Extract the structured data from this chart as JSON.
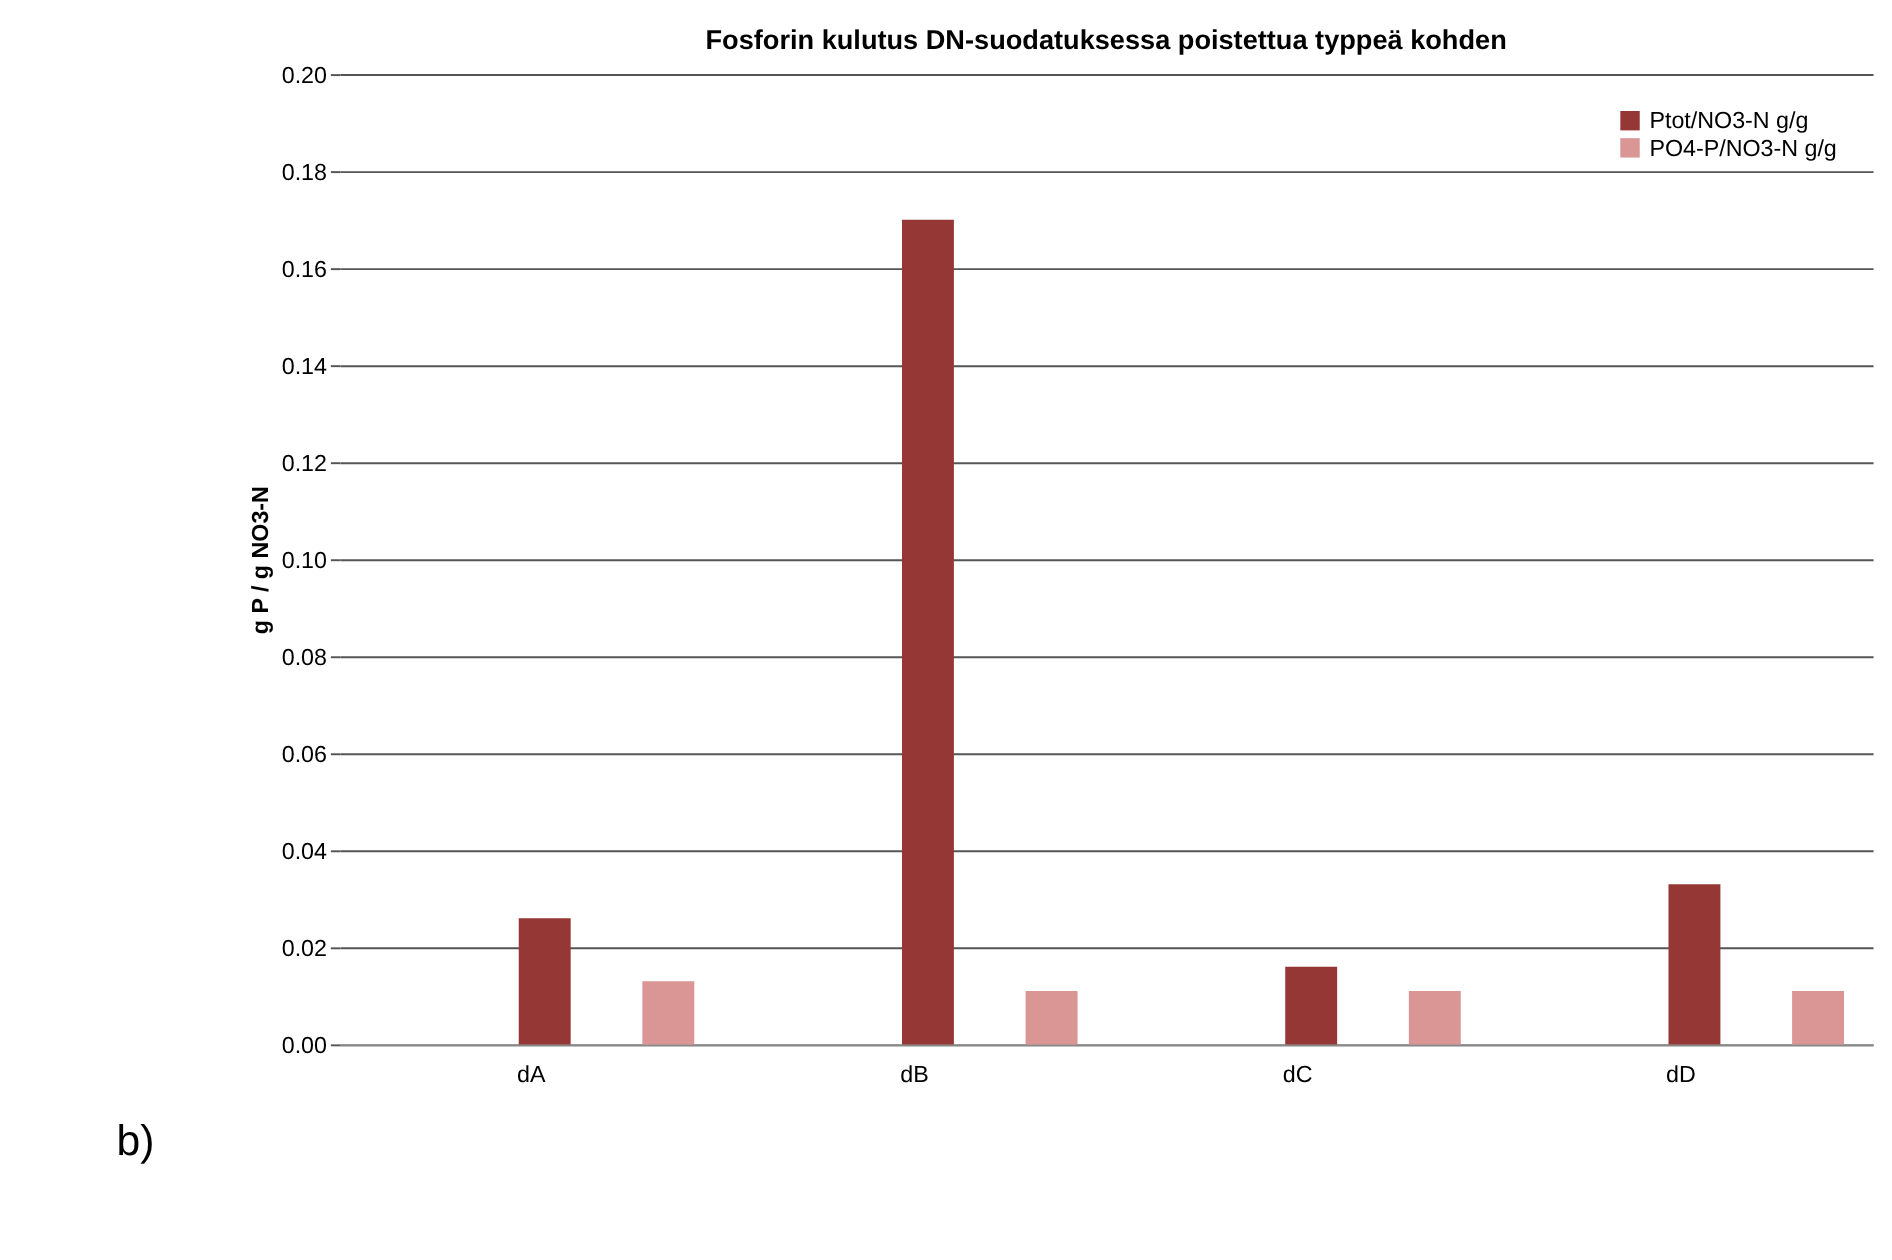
{
  "chart_data": {
    "type": "bar",
    "title": "Fosforin kulutus DN-suodatuksessa poistettua typpeä kohden",
    "ylabel": "g P / g NO3-N",
    "categories": [
      "dA",
      "dB",
      "dC",
      "dD"
    ],
    "series": [
      {
        "name": "Ptot/NO3-N g/g",
        "color": "#953735",
        "values": [
          0.026,
          0.17,
          0.016,
          0.033
        ]
      },
      {
        "name": "PO4-P/NO3-N g/g",
        "color": "#d99694",
        "values": [
          0.013,
          0.011,
          0.011,
          0.011
        ]
      }
    ],
    "ylim": [
      0,
      0.2
    ],
    "yticks": [
      {
        "value": 0,
        "label": "0.00"
      },
      0.02,
      0.04,
      0.06,
      0.08,
      {
        "value": 0.1,
        "label": "0.10"
      },
      0.12,
      0.14,
      0.16,
      0.18,
      {
        "value": 0.2,
        "label": "0.20"
      }
    ],
    "grid": "y",
    "legend": "top right",
    "annotations": [
      "b)"
    ]
  }
}
